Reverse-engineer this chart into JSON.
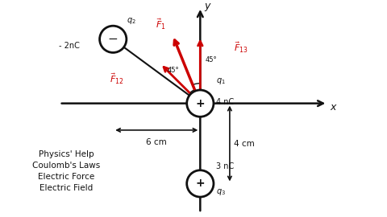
{
  "bg_color": "#ffffff",
  "axis_color": "#111111",
  "red_color": "#cc0000",
  "xlim": [
    -0.11,
    0.1
  ],
  "ylim": [
    -0.085,
    0.075
  ],
  "label_x": "x",
  "label_y": "y",
  "text_physics": "Physics' Help\nCoulomb's Laws\nElectric Force\nElectric Field",
  "q2_label": "q₂",
  "q3_label": "q₃",
  "q1_label": "q₁",
  "minus2nC": "- 2nC",
  "three_nC": "3 nC",
  "four_nC": "4 nC",
  "six_cm": "6 cm",
  "four_cm": "4 cm",
  "deg45_1": "45°",
  "deg45_2": "45°",
  "F1_label": "F⃗1",
  "F12_label": "F⃗12",
  "F13_label": "F⃗13"
}
